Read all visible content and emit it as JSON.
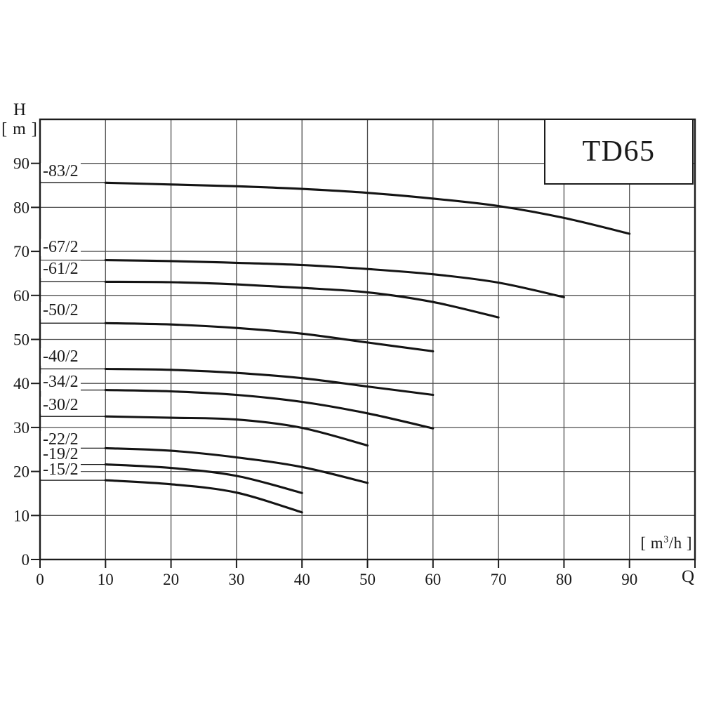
{
  "labels": {
    "title": "TD65",
    "y_symbol": "H",
    "y_unit": "[ m ]",
    "x_symbol": "Q",
    "x_unit_prefix": "[ m",
    "x_unit_sup": "3",
    "x_unit_suffix": "/h ]"
  },
  "colors": {
    "background": "#ffffff",
    "grid": "#4f4f4f",
    "frame": "#1c1c1c",
    "curve": "#141414",
    "text": "#1a1a1a"
  },
  "chart_data": {
    "type": "line",
    "title": "TD65",
    "xlabel": "Q [ m3/h ]",
    "ylabel": "H [ m ]",
    "xlim": [
      0,
      100
    ],
    "ylim": [
      0,
      100
    ],
    "x_ticks": [
      0,
      10,
      20,
      30,
      40,
      50,
      60,
      70,
      80,
      90
    ],
    "y_ticks": [
      0,
      10,
      20,
      30,
      40,
      50,
      60,
      70,
      80,
      90
    ],
    "grid": true,
    "grid_step": 10,
    "legend_position": "labels-at-curve-start-left",
    "series": [
      {
        "name": "-83/2",
        "label_h": 88.0,
        "points": [
          [
            10,
            85.6
          ],
          [
            20,
            85.2
          ],
          [
            30,
            84.8
          ],
          [
            40,
            84.2
          ],
          [
            50,
            83.3
          ],
          [
            60,
            82.0
          ],
          [
            70,
            80.3
          ],
          [
            80,
            77.6
          ],
          [
            90,
            74.0
          ]
        ]
      },
      {
        "name": "-67/2",
        "label_h": 70.9,
        "points": [
          [
            10,
            68.0
          ],
          [
            20,
            67.8
          ],
          [
            30,
            67.4
          ],
          [
            40,
            66.9
          ],
          [
            50,
            66.0
          ],
          [
            60,
            64.8
          ],
          [
            70,
            62.9
          ],
          [
            80,
            59.6
          ]
        ]
      },
      {
        "name": "-61/2",
        "label_h": 65.9,
        "points": [
          [
            10,
            63.1
          ],
          [
            20,
            63.0
          ],
          [
            30,
            62.5
          ],
          [
            40,
            61.7
          ],
          [
            50,
            60.7
          ],
          [
            60,
            58.5
          ],
          [
            70,
            55.0
          ]
        ]
      },
      {
        "name": "-50/2",
        "label_h": 56.4,
        "points": [
          [
            10,
            53.7
          ],
          [
            20,
            53.4
          ],
          [
            30,
            52.6
          ],
          [
            40,
            51.3
          ],
          [
            50,
            49.3
          ],
          [
            60,
            47.3
          ]
        ]
      },
      {
        "name": "-40/2",
        "label_h": 46.0,
        "points": [
          [
            10,
            43.3
          ],
          [
            20,
            43.1
          ],
          [
            30,
            42.4
          ],
          [
            40,
            41.2
          ],
          [
            50,
            39.3
          ],
          [
            60,
            37.4
          ]
        ]
      },
      {
        "name": "-34/2",
        "label_h": 40.2,
        "points": [
          [
            10,
            38.5
          ],
          [
            20,
            38.2
          ],
          [
            30,
            37.4
          ],
          [
            40,
            35.8
          ],
          [
            50,
            33.2
          ],
          [
            60,
            29.8
          ]
        ]
      },
      {
        "name": "-30/2",
        "label_h": 34.9,
        "points": [
          [
            10,
            32.5
          ],
          [
            20,
            32.2
          ],
          [
            30,
            31.8
          ],
          [
            40,
            29.9
          ],
          [
            50,
            25.9
          ]
        ]
      },
      {
        "name": "-22/2",
        "label_h": 27.1,
        "points": [
          [
            10,
            25.3
          ],
          [
            20,
            24.7
          ],
          [
            30,
            23.2
          ],
          [
            40,
            21.0
          ],
          [
            50,
            17.4
          ]
        ]
      },
      {
        "name": "-19/2",
        "label_h": 23.7,
        "points": [
          [
            10,
            21.6
          ],
          [
            20,
            20.8
          ],
          [
            30,
            19.0
          ],
          [
            40,
            15.1
          ]
        ]
      },
      {
        "name": "-15/2",
        "label_h": 20.2,
        "points": [
          [
            10,
            18.0
          ],
          [
            20,
            17.1
          ],
          [
            30,
            15.2
          ],
          [
            40,
            10.7
          ]
        ]
      }
    ]
  }
}
